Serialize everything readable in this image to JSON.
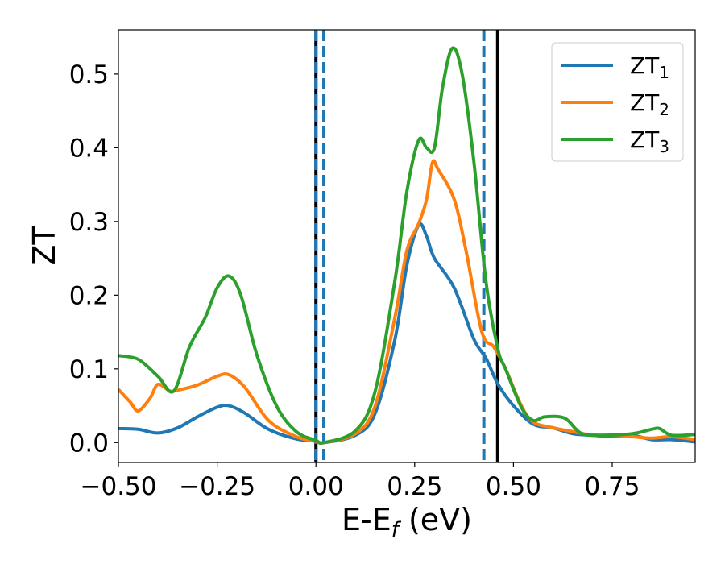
{
  "chart_data": {
    "type": "line",
    "xlabel": "E-E",
    "xlabel_sub": "f",
    "xlabel_unit": " (eV)",
    "ylabel": "ZT",
    "xlim": [
      -0.5,
      0.96
    ],
    "ylim": [
      -0.027,
      0.56
    ],
    "xticks": [
      -0.5,
      -0.25,
      0.0,
      0.25,
      0.5,
      0.75
    ],
    "xtick_labels": [
      "−0.50",
      "−0.25",
      "0.00",
      "0.25",
      "0.50",
      "0.75"
    ],
    "yticks": [
      0.0,
      0.1,
      0.2,
      0.3,
      0.4,
      0.5
    ],
    "ytick_labels": [
      "0.0",
      "0.1",
      "0.2",
      "0.3",
      "0.4",
      "0.5"
    ],
    "grid": false,
    "legend_position": "top-right",
    "series": [
      {
        "name": "ZT",
        "sub": "1",
        "color": "#1f77b4",
        "points": [
          [
            -0.5,
            0.019
          ],
          [
            -0.45,
            0.018
          ],
          [
            -0.4,
            0.013
          ],
          [
            -0.35,
            0.02
          ],
          [
            -0.3,
            0.035
          ],
          [
            -0.25,
            0.048
          ],
          [
            -0.22,
            0.05
          ],
          [
            -0.18,
            0.04
          ],
          [
            -0.12,
            0.018
          ],
          [
            -0.05,
            0.005
          ],
          [
            0.0,
            0.002
          ],
          [
            0.02,
            0.0
          ],
          [
            0.1,
            0.01
          ],
          [
            0.15,
            0.04
          ],
          [
            0.2,
            0.14
          ],
          [
            0.23,
            0.24
          ],
          [
            0.26,
            0.295
          ],
          [
            0.28,
            0.28
          ],
          [
            0.3,
            0.25
          ],
          [
            0.35,
            0.21
          ],
          [
            0.4,
            0.14
          ],
          [
            0.43,
            0.115
          ],
          [
            0.46,
            0.08
          ],
          [
            0.5,
            0.05
          ],
          [
            0.55,
            0.025
          ],
          [
            0.6,
            0.02
          ],
          [
            0.65,
            0.012
          ],
          [
            0.7,
            0.01
          ],
          [
            0.75,
            0.008
          ],
          [
            0.8,
            0.01
          ],
          [
            0.85,
            0.004
          ],
          [
            0.9,
            0.004
          ],
          [
            0.96,
            0.001
          ]
        ]
      },
      {
        "name": "ZT",
        "sub": "2",
        "color": "#ff7f0e",
        "points": [
          [
            -0.5,
            0.072
          ],
          [
            -0.47,
            0.055
          ],
          [
            -0.45,
            0.043
          ],
          [
            -0.42,
            0.06
          ],
          [
            -0.4,
            0.079
          ],
          [
            -0.37,
            0.07
          ],
          [
            -0.35,
            0.071
          ],
          [
            -0.3,
            0.078
          ],
          [
            -0.25,
            0.09
          ],
          [
            -0.22,
            0.092
          ],
          [
            -0.18,
            0.075
          ],
          [
            -0.12,
            0.03
          ],
          [
            -0.05,
            0.008
          ],
          [
            0.0,
            0.002
          ],
          [
            0.02,
            0.0
          ],
          [
            0.1,
            0.012
          ],
          [
            0.15,
            0.05
          ],
          [
            0.2,
            0.17
          ],
          [
            0.23,
            0.26
          ],
          [
            0.26,
            0.297
          ],
          [
            0.28,
            0.33
          ],
          [
            0.295,
            0.38
          ],
          [
            0.31,
            0.37
          ],
          [
            0.35,
            0.33
          ],
          [
            0.38,
            0.26
          ],
          [
            0.42,
            0.15
          ],
          [
            0.45,
            0.13
          ],
          [
            0.48,
            0.1
          ],
          [
            0.52,
            0.05
          ],
          [
            0.55,
            0.028
          ],
          [
            0.6,
            0.02
          ],
          [
            0.65,
            0.015
          ],
          [
            0.7,
            0.01
          ],
          [
            0.75,
            0.01
          ],
          [
            0.8,
            0.008
          ],
          [
            0.85,
            0.006
          ],
          [
            0.9,
            0.008
          ],
          [
            0.96,
            0.004
          ]
        ]
      },
      {
        "name": "ZT",
        "sub": "3",
        "color": "#2ca02c",
        "points": [
          [
            -0.5,
            0.118
          ],
          [
            -0.45,
            0.113
          ],
          [
            -0.4,
            0.09
          ],
          [
            -0.36,
            0.07
          ],
          [
            -0.32,
            0.13
          ],
          [
            -0.28,
            0.17
          ],
          [
            -0.25,
            0.21
          ],
          [
            -0.22,
            0.226
          ],
          [
            -0.19,
            0.2
          ],
          [
            -0.15,
            0.12
          ],
          [
            -0.1,
            0.05
          ],
          [
            -0.05,
            0.015
          ],
          [
            0.0,
            0.003
          ],
          [
            0.02,
            0.0
          ],
          [
            0.1,
            0.016
          ],
          [
            0.15,
            0.07
          ],
          [
            0.2,
            0.22
          ],
          [
            0.23,
            0.34
          ],
          [
            0.26,
            0.41
          ],
          [
            0.28,
            0.4
          ],
          [
            0.3,
            0.4
          ],
          [
            0.32,
            0.48
          ],
          [
            0.345,
            0.535
          ],
          [
            0.37,
            0.5
          ],
          [
            0.4,
            0.38
          ],
          [
            0.43,
            0.22
          ],
          [
            0.46,
            0.128
          ],
          [
            0.48,
            0.1
          ],
          [
            0.52,
            0.048
          ],
          [
            0.55,
            0.03
          ],
          [
            0.58,
            0.035
          ],
          [
            0.63,
            0.033
          ],
          [
            0.67,
            0.013
          ],
          [
            0.72,
            0.01
          ],
          [
            0.8,
            0.012
          ],
          [
            0.85,
            0.018
          ],
          [
            0.87,
            0.019
          ],
          [
            0.9,
            0.01
          ],
          [
            0.96,
            0.011
          ]
        ]
      }
    ],
    "vlines": [
      {
        "x": 0.0,
        "color": "#000000",
        "style": "solid"
      },
      {
        "x": 0.0,
        "color": "#1f77b4",
        "style": "dashed"
      },
      {
        "x": 0.02,
        "color": "#1f77b4",
        "style": "dashed"
      },
      {
        "x": 0.425,
        "color": "#1f77b4",
        "style": "dashed"
      },
      {
        "x": 0.46,
        "color": "#000000",
        "style": "solid"
      }
    ]
  }
}
